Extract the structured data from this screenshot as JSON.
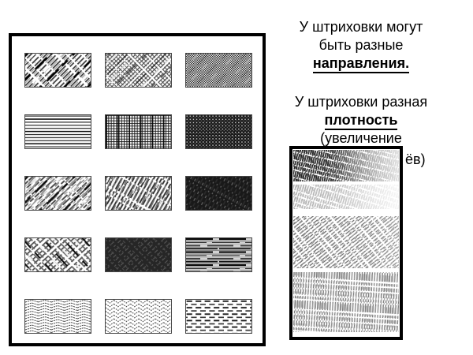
{
  "colors": {
    "ink": "#000000",
    "background": "#ffffff",
    "panel_border": "#000000"
  },
  "caption_directions": {
    "line1": "У штриховки могут",
    "line2": "быть разные",
    "line3": "направления."
  },
  "caption_density": {
    "line1": "У штриховки разная",
    "line2": "плотность",
    "line3": "(увеличение",
    "overflow_fragment": "ёв)"
  },
  "hatching_board": {
    "swatches": [
      {
        "name": "diagonal-lines"
      },
      {
        "name": "diagonal-crosshatch"
      },
      {
        "name": "fine-checker"
      },
      {
        "name": "horizontal-lines"
      },
      {
        "name": "grid"
      },
      {
        "name": "dark-weave"
      },
      {
        "name": "sketch-diagonal-light"
      },
      {
        "name": "sketch-diagonal-medium"
      },
      {
        "name": "sketch-diagonal-dark"
      },
      {
        "name": "sketch-crosshatch-medium"
      },
      {
        "name": "sketch-crosshatch-dark"
      },
      {
        "name": "horizontal-streaks"
      },
      {
        "name": "zigzag-horizontal"
      },
      {
        "name": "herringbone-vertical"
      },
      {
        "name": "dashes"
      }
    ]
  },
  "density_panel": {
    "bands": [
      {
        "name": "pencil-gradient-dark"
      },
      {
        "name": "pencil-gradient-light"
      },
      {
        "name": "diagonal-hatching"
      },
      {
        "name": "vertical-hatching"
      }
    ]
  }
}
